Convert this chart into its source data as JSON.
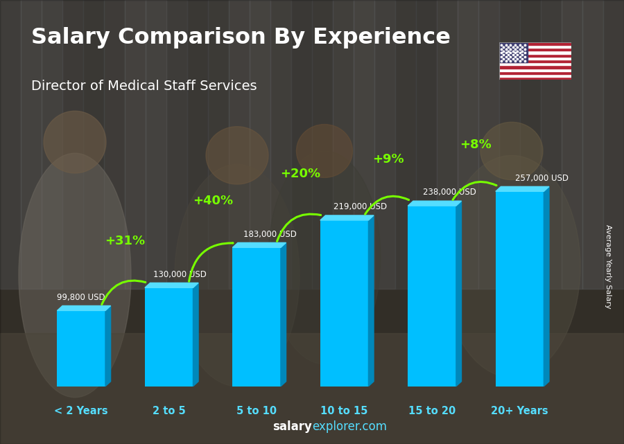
{
  "title": "Salary Comparison By Experience",
  "subtitle": "Director of Medical Staff Services",
  "categories": [
    "< 2 Years",
    "2 to 5",
    "5 to 10",
    "10 to 15",
    "15 to 20",
    "20+ Years"
  ],
  "values": [
    99800,
    130000,
    183000,
    219000,
    238000,
    257000
  ],
  "value_labels": [
    "99,800 USD",
    "130,000 USD",
    "183,000 USD",
    "219,000 USD",
    "238,000 USD",
    "257,000 USD"
  ],
  "pct_labels": [
    "+31%",
    "+40%",
    "+20%",
    "+9%",
    "+8%"
  ],
  "bar_face_color": "#00BFFF",
  "bar_side_color": "#0088BB",
  "bar_top_color": "#55DDFF",
  "pct_color": "#77FF00",
  "value_color": "#FFFFFF",
  "cat_color": "#55DDFF",
  "title_color": "#FFFFFF",
  "subtitle_color": "#FFFFFF",
  "ylabel": "Average Yearly Salary",
  "footer_salary": "salary",
  "footer_rest": "explorer.com",
  "footer_salary_color": "#FFFFFF",
  "footer_rest_color": "#55DDFF",
  "bg_base": "#5a5040",
  "ylabel_color": "#FFFFFF",
  "max_val": 290000
}
